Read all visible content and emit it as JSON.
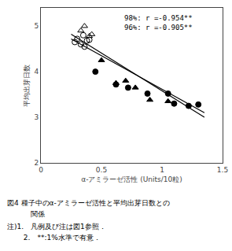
{
  "chart_data": {
    "type": "scatter",
    "xlabel": "α-アミラーゼ活性 (Units/10粒)",
    "ylabel": "平均出芽日数",
    "xlim": [
      0.0,
      1.5
    ],
    "ylim": [
      2.0,
      5.4
    ],
    "xticks": [
      0.0,
      0.5,
      1.0,
      1.5
    ],
    "yticks": [
      2,
      3,
      4,
      5
    ],
    "grid": false,
    "annotation": "98%: r =-0.954**\n96%: r =-0.905**",
    "notes": [
      "図4 種子中のα-アミラーゼ活性と平均出芽日数との",
      "関係",
      "注)1.　凡例及び注は図1参照．",
      "　　 2.　**:1%水準で有意．"
    ],
    "series": [
      {
        "type": "scatter",
        "marker": "circle-open",
        "color": "#000000",
        "x": [
          0.28,
          0.3,
          0.33,
          0.35,
          0.36,
          0.38,
          0.4
        ],
        "values": [
          4.65,
          4.72,
          4.6,
          4.8,
          4.55,
          4.68,
          4.7
        ]
      },
      {
        "type": "scatter",
        "marker": "triangle-up-open",
        "color": "#000000",
        "x": [
          0.33,
          0.36,
          0.4,
          0.42
        ],
        "values": [
          4.9,
          5.0,
          4.78,
          4.82
        ]
      },
      {
        "type": "scatter",
        "marker": "circle",
        "color": "#000000",
        "x": [
          0.45,
          0.62,
          0.72,
          0.88,
          1.05,
          1.1,
          1.22,
          1.3
        ],
        "values": [
          4.0,
          3.72,
          3.65,
          3.52,
          3.52,
          3.3,
          3.25,
          3.28
        ]
      },
      {
        "type": "scatter",
        "marker": "triangle-up",
        "color": "#000000",
        "x": [
          0.5,
          0.62,
          0.7,
          0.78,
          0.9,
          1.05
        ],
        "values": [
          4.25,
          3.75,
          3.8,
          3.65,
          3.38,
          3.35
        ]
      },
      {
        "type": "line",
        "line_style": "solid",
        "color": "#000000",
        "x": [
          0.25,
          1.35
        ],
        "values": [
          4.82,
          3.0
        ]
      },
      {
        "type": "line",
        "line_style": "solid",
        "color": "#000000",
        "x": [
          0.25,
          1.35
        ],
        "values": [
          4.72,
          3.1
        ]
      }
    ]
  }
}
